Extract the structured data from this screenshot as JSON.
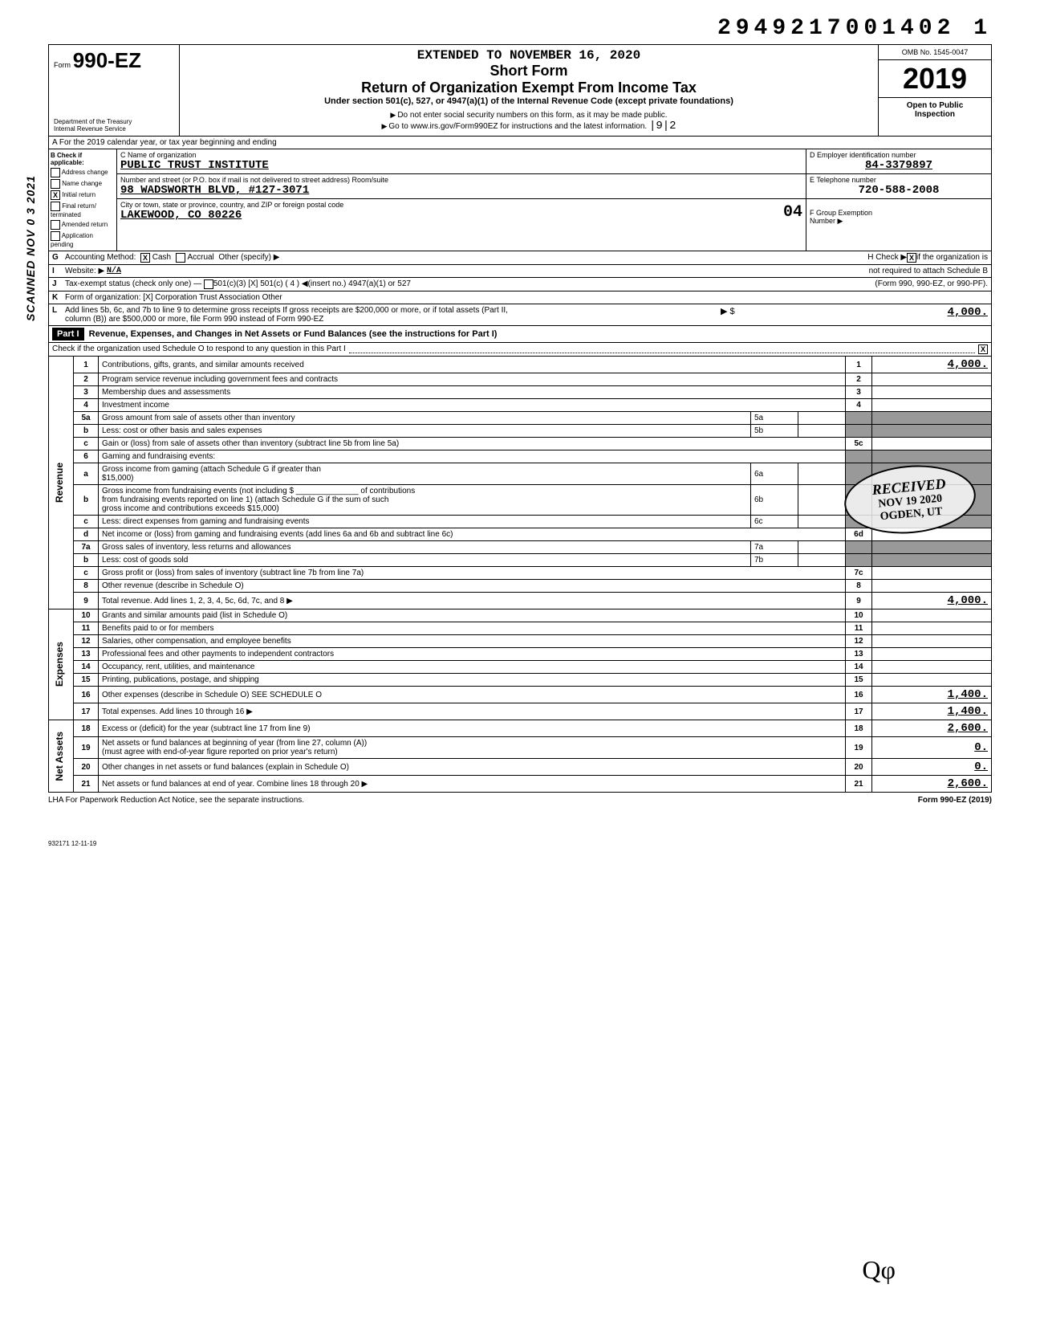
{
  "doc_id": "2949217001402 1",
  "side_scanned": "SCANNED NOV 0 3 2021",
  "form": {
    "prefix": "Form",
    "number": "990-EZ",
    "dept": "Department of the Treasury\nInternal Revenue Service"
  },
  "header": {
    "extended": "EXTENDED TO NOVEMBER 16, 2020",
    "short_form": "Short Form",
    "title": "Return of Organization Exempt From Income Tax",
    "subtitle": "Under section 501(c), 527, or 4947(a)(1) of the Internal Revenue Code (except private foundations)",
    "note1": "Do not enter social security numbers on this form, as it may be made public.",
    "note2": "Go to www.irs.gov/Form990EZ for instructions and the latest information.",
    "note2_extra": "|9|2",
    "omb": "OMB No. 1545-0047",
    "year": "2019",
    "open": "Open to Public\nInspection"
  },
  "row_a": "A  For the 2019 calendar year, or tax year beginning                                                and ending",
  "col_b": {
    "hdr": "B Check if applicable:",
    "items": [
      "Address change",
      "Name change",
      "Initial return",
      "Final return/ terminated",
      "Amended return",
      "Application pending"
    ],
    "checked_index": 2
  },
  "col_c": {
    "name_label": "C Name of organization",
    "name": "PUBLIC TRUST INSTITUTE",
    "addr_label": "Number and street (or P.O. box if mail is not delivered to street address)                          Room/suite",
    "addr": "98 WADSWORTH BLVD, #127-3071",
    "city_label": "City or town, state or province, country, and ZIP or foreign postal code",
    "city": "LAKEWOOD, CO  80226",
    "city_extra": "04"
  },
  "col_d": {
    "ein_label": "D Employer identification number",
    "ein": "84-3379897",
    "tel_label": "E Telephone number",
    "tel": "720-588-2008",
    "grp_label": "F Group Exemption\n   Number ▶",
    "grp": ""
  },
  "row_g": {
    "text": "Accounting Method:",
    "cash": "Cash",
    "accrual": "Accrual",
    "other": "Other (specify) ▶",
    "h": "H Check ▶",
    "h2": "if the organization is"
  },
  "row_i": {
    "label": "Website: ▶",
    "val": "N/A",
    "h2": "not required to attach Schedule B"
  },
  "row_j": {
    "label": "Tax-exempt status (check only one) —",
    "opts": "501(c)(3)   [X] 501(c) ( 4  ) ◀(insert no.)     4947(a)(1) or     527",
    "h3": "(Form 990, 990-EZ, or 990-PF)."
  },
  "row_k": {
    "label": "Form of organization:",
    "opts": "[X] Corporation      Trust      Association      Other"
  },
  "row_l": {
    "text": "Add lines 5b, 6c, and 7b to line 9 to determine gross receipts  If gross receipts are $200,000 or more, or if total assets (Part II,\ncolumn (B)) are $500,000 or more, file Form 990 instead of Form 990-EZ",
    "arrow": "▶ $",
    "amt": "4,000."
  },
  "part1": {
    "label": "Part I",
    "title": "Revenue, Expenses, and Changes in Net Assets or Fund Balances (see the instructions for Part I)",
    "check": "Check if the organization used Schedule O to respond to any question in this Part I",
    "check_val": "X"
  },
  "sections": {
    "revenue": "Revenue",
    "expenses": "Expenses",
    "netassets": "Net Assets"
  },
  "lines": [
    {
      "n": "1",
      "d": "Contributions, gifts, grants, and similar amounts received",
      "ln": "1",
      "amt": "4,000."
    },
    {
      "n": "2",
      "d": "Program service revenue including government fees and contracts",
      "ln": "2",
      "amt": ""
    },
    {
      "n": "3",
      "d": "Membership dues and assessments",
      "ln": "3",
      "amt": ""
    },
    {
      "n": "4",
      "d": "Investment income",
      "ln": "4",
      "amt": ""
    },
    {
      "n": "5a",
      "d": "Gross amount from sale of assets other than inventory",
      "sub": "5a",
      "subv": ""
    },
    {
      "n": "b",
      "d": "Less: cost or other basis and sales expenses",
      "sub": "5b",
      "subv": ""
    },
    {
      "n": "c",
      "d": "Gain or (loss) from sale of assets other than inventory (subtract line 5b from line 5a)",
      "ln": "5c",
      "amt": ""
    },
    {
      "n": "6",
      "d": "Gaming and fundraising events:"
    },
    {
      "n": "a",
      "d": "Gross income from gaming (attach Schedule G if greater than\n$15,000)",
      "sub": "6a",
      "subv": ""
    },
    {
      "n": "b",
      "d": "Gross income from fundraising events (not including $ ______________ of contributions\nfrom fundraising events reported on line 1) (attach Schedule G if the sum of such\ngross income and contributions exceeds $15,000)",
      "sub": "6b",
      "subv": ""
    },
    {
      "n": "c",
      "d": "Less: direct expenses from gaming and fundraising events",
      "sub": "6c",
      "subv": ""
    },
    {
      "n": "d",
      "d": "Net income or (loss) from gaming and fundraising events (add lines 6a and 6b and subtract line 6c)",
      "ln": "6d",
      "amt": ""
    },
    {
      "n": "7a",
      "d": "Gross sales of inventory, less returns and allowances",
      "sub": "7a",
      "subv": ""
    },
    {
      "n": "b",
      "d": "Less: cost of goods sold",
      "sub": "7b",
      "subv": ""
    },
    {
      "n": "c",
      "d": "Gross profit or (loss) from sales of inventory (subtract line 7b from line 7a)",
      "ln": "7c",
      "amt": ""
    },
    {
      "n": "8",
      "d": "Other revenue (describe in Schedule O)",
      "ln": "8",
      "amt": ""
    },
    {
      "n": "9",
      "d": "Total revenue. Add lines 1, 2, 3, 4, 5c, 6d, 7c, and 8                                                         ▶",
      "ln": "9",
      "amt": "4,000."
    },
    {
      "n": "10",
      "d": "Grants and similar amounts paid (list in Schedule O)",
      "ln": "10",
      "amt": ""
    },
    {
      "n": "11",
      "d": "Benefits paid to or for members",
      "ln": "11",
      "amt": ""
    },
    {
      "n": "12",
      "d": "Salaries, other compensation, and employee benefits",
      "ln": "12",
      "amt": ""
    },
    {
      "n": "13",
      "d": "Professional fees and other payments to independent contractors",
      "ln": "13",
      "amt": ""
    },
    {
      "n": "14",
      "d": "Occupancy, rent, utilities, and maintenance",
      "ln": "14",
      "amt": ""
    },
    {
      "n": "15",
      "d": "Printing, publications, postage, and shipping",
      "ln": "15",
      "amt": ""
    },
    {
      "n": "16",
      "d": "Other expenses (describe in Schedule O)                                      SEE SCHEDULE O",
      "ln": "16",
      "amt": "1,400."
    },
    {
      "n": "17",
      "d": "Total expenses. Add lines 10 through 16                                                                       ▶",
      "ln": "17",
      "amt": "1,400."
    },
    {
      "n": "18",
      "d": "Excess or (deficit) for the year (subtract line 17 from line 9)",
      "ln": "18",
      "amt": "2,600."
    },
    {
      "n": "19",
      "d": "Net assets or fund balances at beginning of year (from line 27, column (A))\n(must agree with end-of-year figure reported on prior year's return)",
      "ln": "19",
      "amt": "0."
    },
    {
      "n": "20",
      "d": "Other changes in net assets or fund balances (explain in Schedule O)",
      "ln": "20",
      "amt": "0."
    },
    {
      "n": "21",
      "d": "Net assets or fund balances at end of year. Combine lines 18 through 20                              ▶",
      "ln": "21",
      "amt": "2,600."
    }
  ],
  "footer": {
    "left": "LHA  For Paperwork Reduction Act Notice, see the separate instructions.",
    "right": "Form 990-EZ (2019)"
  },
  "stamp": {
    "r1": "RECEIVED",
    "r2": "NOV 19 2020",
    "r3": "OGDEN, UT"
  },
  "initials": "Qφ",
  "bottom_id": "932171  12-11-19"
}
